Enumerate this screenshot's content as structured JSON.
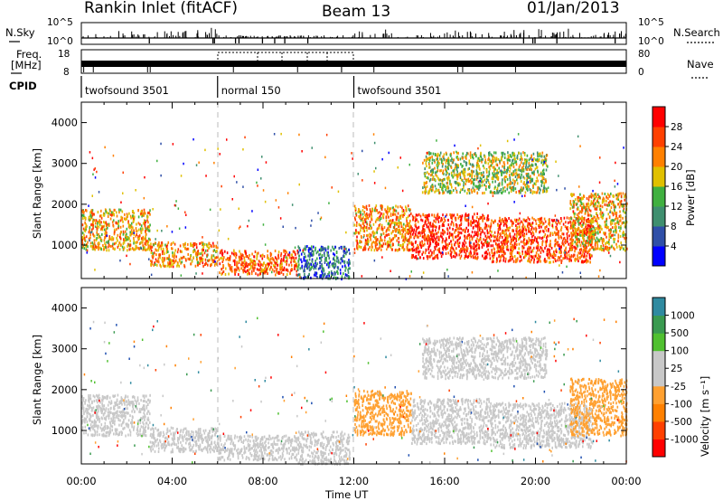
{
  "header": {
    "station": "Rankin Inlet (fitACF)",
    "beam": "Beam 13",
    "date": "01/Jan/2013"
  },
  "top_panels": {
    "nsky_label": "N.Sky",
    "nsky_ticks": [
      "10^5",
      "10^0"
    ],
    "nsearch_label": "N.Search",
    "nsearch_ticks": [
      "10^5",
      "10^0"
    ],
    "freq_label_1": "Freq.",
    "freq_label_2": "[MHz]",
    "freq_ticks": [
      "18",
      "8"
    ],
    "nave_label": "Nave",
    "nave_ticks": [
      "80",
      "0"
    ],
    "cpid_label": "CPID",
    "modes": [
      {
        "name": "twofsound 3501",
        "start_hr": 0,
        "end_hr": 6
      },
      {
        "name": "normal 150",
        "start_hr": 6,
        "end_hr": 12
      },
      {
        "name": "twofsound 3501",
        "start_hr": 12,
        "end_hr": 24
      }
    ]
  },
  "colors": {
    "power_scale": [
      "#0000ff",
      "#2f4fa8",
      "#3f8f6f",
      "#40b040",
      "#e0c000",
      "#ff8000",
      "#ff4000",
      "#ff0000"
    ],
    "velocity_scale": [
      "#ff0000",
      "#ff4000",
      "#ff8000",
      "#ffa030",
      "#c8c8c8",
      "#c8c8c8",
      "#50c030",
      "#3a9a50",
      "#2f8aa0",
      "#1f4fb0"
    ]
  },
  "chart_data": [
    {
      "type": "heatmap",
      "name": "power",
      "ylabel": "Slant Range [km]",
      "colorbar_label": "Power [dB]",
      "colorbar_ticks": [
        "28",
        "24",
        "20",
        "16",
        "12",
        "8",
        "4"
      ],
      "yticks": [
        "4000",
        "3000",
        "2000",
        "1000"
      ],
      "ylim": [
        180,
        4500
      ],
      "xlim": [
        0,
        24
      ],
      "regions": [
        {
          "t0": 0.0,
          "t1": 3.0,
          "r0": 900,
          "r1": 1900,
          "v": 20
        },
        {
          "t0": 3.0,
          "t1": 6.0,
          "r0": 500,
          "r1": 1100,
          "v": 22
        },
        {
          "t0": 6.0,
          "t1": 9.5,
          "r0": 300,
          "r1": 900,
          "v": 24
        },
        {
          "t0": 9.5,
          "t1": 11.8,
          "r0": 200,
          "r1": 1000,
          "v": 8
        },
        {
          "t0": 12.0,
          "t1": 14.5,
          "r0": 900,
          "r1": 2000,
          "v": 22
        },
        {
          "t0": 14.5,
          "t1": 18.0,
          "r0": 700,
          "r1": 1800,
          "v": 28
        },
        {
          "t0": 15.0,
          "t1": 20.5,
          "r0": 2300,
          "r1": 3300,
          "v": 16
        },
        {
          "t0": 18.0,
          "t1": 22.5,
          "r0": 600,
          "r1": 1700,
          "v": 26
        },
        {
          "t0": 21.5,
          "t1": 24.0,
          "r0": 900,
          "r1": 2300,
          "v": 20
        }
      ]
    },
    {
      "type": "heatmap",
      "name": "velocity",
      "xlabel": "Time UT",
      "ylabel": "Slant Range [km]",
      "colorbar_label": "Velocity [m s⁻¹]",
      "colorbar_ticks": [
        "1000",
        "500",
        "100",
        "25",
        "-25",
        "-100",
        "-500",
        "-1000"
      ],
      "yticks": [
        "4000",
        "3000",
        "2000",
        "1000"
      ],
      "xticks": [
        "00:00",
        "04:00",
        "08:00",
        "12:00",
        "16:00",
        "20:00",
        "00:00"
      ],
      "ylim": [
        180,
        4500
      ],
      "xlim": [
        0,
        24
      ],
      "regions": [
        {
          "t0": 0.0,
          "t1": 3.0,
          "r0": 900,
          "r1": 1900,
          "v": 0
        },
        {
          "t0": 3.0,
          "t1": 6.0,
          "r0": 500,
          "r1": 1100,
          "v": 100
        },
        {
          "t0": 6.0,
          "t1": 9.5,
          "r0": 300,
          "r1": 900,
          "v": -100
        },
        {
          "t0": 9.5,
          "t1": 11.8,
          "r0": 200,
          "r1": 1000,
          "v": -200
        },
        {
          "t0": 12.0,
          "t1": 14.5,
          "r0": 900,
          "r1": 2000,
          "v": -300
        },
        {
          "t0": 14.5,
          "t1": 18.0,
          "r0": 700,
          "r1": 1800,
          "v": 0
        },
        {
          "t0": 15.0,
          "t1": 20.5,
          "r0": 2300,
          "r1": 3300,
          "v": -150
        },
        {
          "t0": 18.0,
          "t1": 22.5,
          "r0": 600,
          "r1": 1700,
          "v": 50
        },
        {
          "t0": 21.5,
          "t1": 24.0,
          "r0": 900,
          "r1": 2300,
          "v": -400
        }
      ]
    }
  ]
}
